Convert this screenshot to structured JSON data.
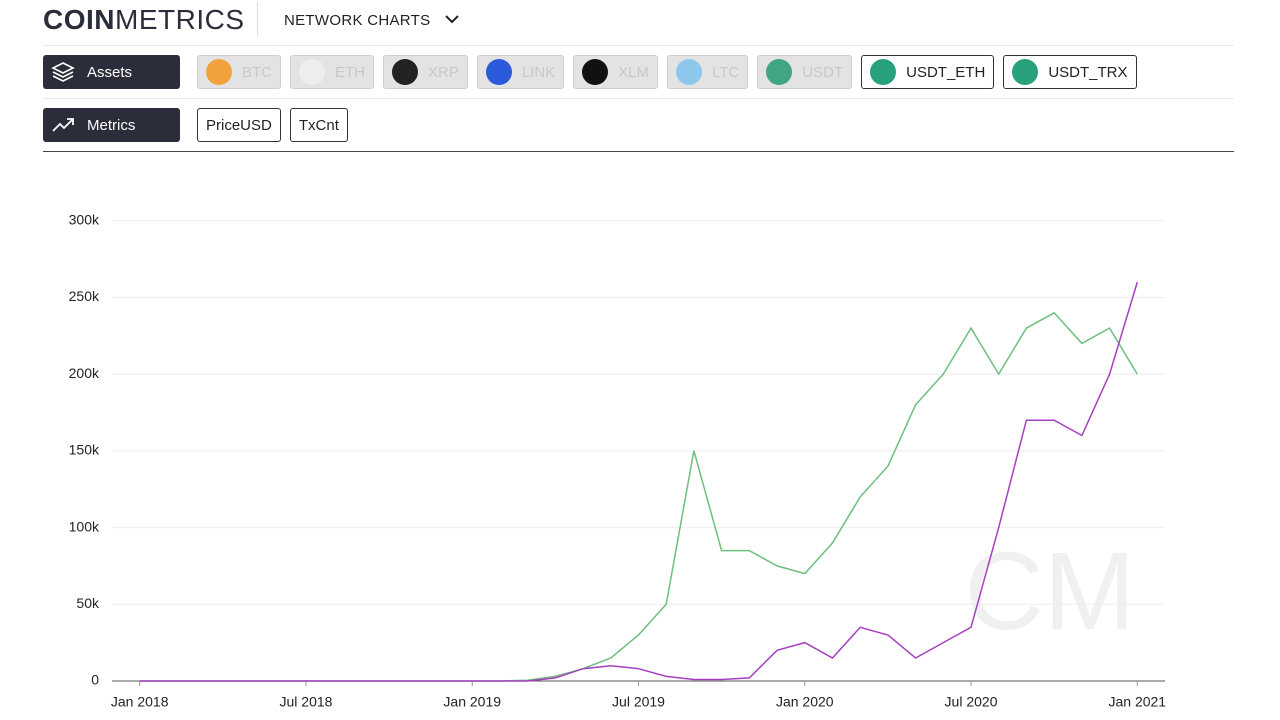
{
  "header": {
    "logo_bold": "COIN",
    "logo_light": "METRICS",
    "menu": "NETWORK CHARTS"
  },
  "assets": {
    "label": "Assets",
    "items": [
      "BTC",
      "ETH",
      "XRP",
      "LINK",
      "XLM",
      "LTC",
      "USDT"
    ]
  },
  "metrics": {
    "label": "Metrics",
    "items": [
      "PriceUSD",
      "TxCnt"
    ]
  },
  "watermark": "CM",
  "chart_data": {
    "type": "line",
    "x": [
      "2018-01",
      "2018-02",
      "2018-03",
      "2018-04",
      "2018-05",
      "2018-06",
      "2018-07",
      "2018-08",
      "2018-09",
      "2018-10",
      "2018-11",
      "2018-12",
      "2019-01",
      "2019-02",
      "2019-03",
      "2019-04",
      "2019-05",
      "2019-06",
      "2019-07",
      "2019-08",
      "2019-09",
      "2019-10",
      "2019-11",
      "2019-12",
      "2020-01",
      "2020-02",
      "2020-03",
      "2020-04",
      "2020-05",
      "2020-06",
      "2020-07",
      "2020-08",
      "2020-09",
      "2020-10",
      "2020-11",
      "2020-12",
      "2021-01"
    ],
    "series": [
      {
        "name": "USDT_ETH",
        "color": "#6cbf7c",
        "values": [
          0,
          0,
          0,
          0,
          0,
          0,
          0,
          0,
          0,
          0,
          0,
          0,
          0,
          0,
          500,
          3000,
          8000,
          15000,
          30000,
          50000,
          150000,
          85000,
          85000,
          75000,
          70000,
          90000,
          120000,
          140000,
          180000,
          200000,
          230000,
          200000,
          230000,
          240000,
          220000,
          230000,
          200000
        ]
      },
      {
        "name": "USDT_TRX",
        "color": "#a63fbf",
        "values": [
          0,
          0,
          0,
          0,
          0,
          0,
          0,
          0,
          0,
          0,
          0,
          0,
          0,
          0,
          0,
          2000,
          8000,
          10000,
          8000,
          3000,
          1000,
          1000,
          2000,
          20000,
          25000,
          15000,
          35000,
          30000,
          15000,
          25000,
          35000,
          100000,
          170000,
          170000,
          160000,
          200000,
          260000
        ]
      }
    ],
    "xlim": [
      "2017-12",
      "2021-02"
    ],
    "xticks": [
      {
        "value": "2018-01",
        "label": "Jan 2018"
      },
      {
        "value": "2018-07",
        "label": "Jul 2018"
      },
      {
        "value": "2019-01",
        "label": "Jan 2019"
      },
      {
        "value": "2019-07",
        "label": "Jul 2019"
      },
      {
        "value": "2020-01",
        "label": "Jan 2020"
      },
      {
        "value": "2020-07",
        "label": "Jul 2020"
      },
      {
        "value": "2021-01",
        "label": "Jan 2021"
      }
    ],
    "ylim": [
      0,
      320000
    ],
    "yticks": [
      0,
      {
        "value": 50000,
        "label": "50k"
      },
      {
        "value": 100000,
        "label": "100k"
      },
      {
        "value": 150000,
        "label": "150k"
      },
      {
        "value": 200000,
        "label": "200k"
      },
      {
        "value": 250000,
        "label": "250k"
      },
      {
        "value": 300000,
        "label": "300k"
      }
    ],
    "grid": true
  }
}
